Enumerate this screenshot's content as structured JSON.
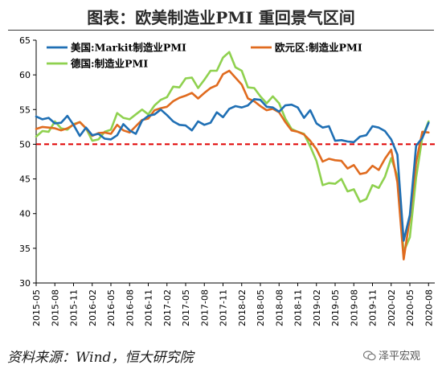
{
  "title": "图表：欧美制造业PMI 重回景气区间",
  "source": "资料来源：Wind，恒大研究院",
  "watermark": "泽平宏观",
  "colors": {
    "us": "#1f6fb4",
    "euro": "#e06b1f",
    "germany": "#8fd14f",
    "reference": "#e00000"
  },
  "chart_data": {
    "type": "line",
    "ylim": [
      30,
      65
    ],
    "yticks": [
      30,
      35,
      40,
      45,
      50,
      55,
      60,
      65
    ],
    "xlim": [
      "2015-05",
      "2020-09"
    ],
    "xticks": [
      "2015-05",
      "2015-08",
      "2015-11",
      "2016-02",
      "2016-05",
      "2016-08",
      "2016-11",
      "2017-02",
      "2017-05",
      "2017-08",
      "2017-11",
      "2018-02",
      "2018-05",
      "2018-08",
      "2018-11",
      "2019-02",
      "2019-05",
      "2019-08",
      "2019-11",
      "2020-02",
      "2020-05",
      "2020-08"
    ],
    "reference_line": 50,
    "legend": [
      {
        "key": "us",
        "label": "美国:Markit制造业PMI"
      },
      {
        "key": "euro",
        "label": "欧元区:制造业PMI"
      },
      {
        "key": "germany",
        "label": "德国:制造业PMI"
      }
    ],
    "x": [
      "2015-05",
      "2015-06",
      "2015-07",
      "2015-08",
      "2015-09",
      "2015-10",
      "2015-11",
      "2015-12",
      "2016-01",
      "2016-02",
      "2016-03",
      "2016-04",
      "2016-05",
      "2016-06",
      "2016-07",
      "2016-08",
      "2016-09",
      "2016-10",
      "2016-11",
      "2016-12",
      "2017-01",
      "2017-02",
      "2017-03",
      "2017-04",
      "2017-05",
      "2017-06",
      "2017-07",
      "2017-08",
      "2017-09",
      "2017-10",
      "2017-11",
      "2017-12",
      "2018-01",
      "2018-02",
      "2018-03",
      "2018-04",
      "2018-05",
      "2018-06",
      "2018-07",
      "2018-08",
      "2018-09",
      "2018-10",
      "2018-11",
      "2018-12",
      "2019-01",
      "2019-02",
      "2019-03",
      "2019-04",
      "2019-05",
      "2019-06",
      "2019-07",
      "2019-08",
      "2019-09",
      "2019-10",
      "2019-11",
      "2019-12",
      "2020-01",
      "2020-02",
      "2020-03",
      "2020-04",
      "2020-05",
      "2020-06",
      "2020-07",
      "2020-08"
    ],
    "series": [
      {
        "key": "us",
        "name": "美国:Markit制造业PMI",
        "values": [
          54.0,
          53.6,
          53.8,
          53.0,
          53.1,
          54.1,
          52.8,
          51.2,
          52.4,
          51.3,
          51.5,
          50.8,
          50.7,
          51.3,
          52.9,
          52.0,
          51.5,
          53.4,
          54.1,
          54.3,
          55.0,
          54.2,
          53.3,
          52.8,
          52.7,
          52.0,
          53.3,
          52.8,
          53.1,
          54.6,
          53.9,
          55.1,
          55.5,
          55.3,
          55.6,
          56.5,
          56.4,
          55.4,
          55.3,
          54.7,
          55.6,
          55.7,
          55.3,
          53.8,
          54.9,
          53.0,
          52.4,
          52.6,
          50.5,
          50.6,
          50.4,
          50.3,
          51.1,
          51.3,
          52.6,
          52.4,
          51.9,
          50.7,
          48.5,
          36.1,
          39.8,
          49.8,
          50.9,
          53.1
        ]
      },
      {
        "key": "euro",
        "name": "欧元区:制造业PMI",
        "values": [
          52.2,
          52.5,
          52.4,
          52.3,
          52.0,
          52.3,
          52.8,
          53.2,
          52.3,
          51.2,
          51.6,
          51.7,
          51.5,
          52.8,
          52.0,
          51.7,
          52.6,
          53.5,
          53.7,
          54.9,
          55.2,
          55.4,
          56.2,
          56.7,
          57.0,
          57.4,
          56.6,
          57.4,
          58.1,
          58.5,
          60.1,
          60.6,
          59.6,
          58.6,
          56.6,
          56.2,
          55.5,
          54.9,
          55.1,
          54.6,
          53.2,
          52.0,
          51.8,
          51.4,
          50.5,
          49.3,
          47.5,
          47.9,
          47.7,
          47.6,
          46.5,
          47.0,
          45.7,
          45.9,
          46.9,
          46.3,
          47.9,
          49.2,
          44.5,
          33.4,
          39.4,
          47.4,
          51.8,
          51.7
        ]
      },
      {
        "key": "germany",
        "name": "德国:制造业PMI",
        "values": [
          51.1,
          51.9,
          51.8,
          53.3,
          52.3,
          52.1,
          52.9,
          53.2,
          52.3,
          50.5,
          50.7,
          51.8,
          52.1,
          54.5,
          53.8,
          53.6,
          54.3,
          55.0,
          54.3,
          55.6,
          56.4,
          56.8,
          58.3,
          58.2,
          59.5,
          59.6,
          58.1,
          59.3,
          60.6,
          60.6,
          62.5,
          63.3,
          61.1,
          60.6,
          58.2,
          58.1,
          56.9,
          55.9,
          56.9,
          55.9,
          53.7,
          52.2,
          51.8,
          51.5,
          49.7,
          47.6,
          44.1,
          44.4,
          44.3,
          45.0,
          43.2,
          43.5,
          41.7,
          42.1,
          44.1,
          43.7,
          45.3,
          48.0,
          45.4,
          34.5,
          36.6,
          45.2,
          51.0,
          53.3
        ]
      }
    ]
  }
}
